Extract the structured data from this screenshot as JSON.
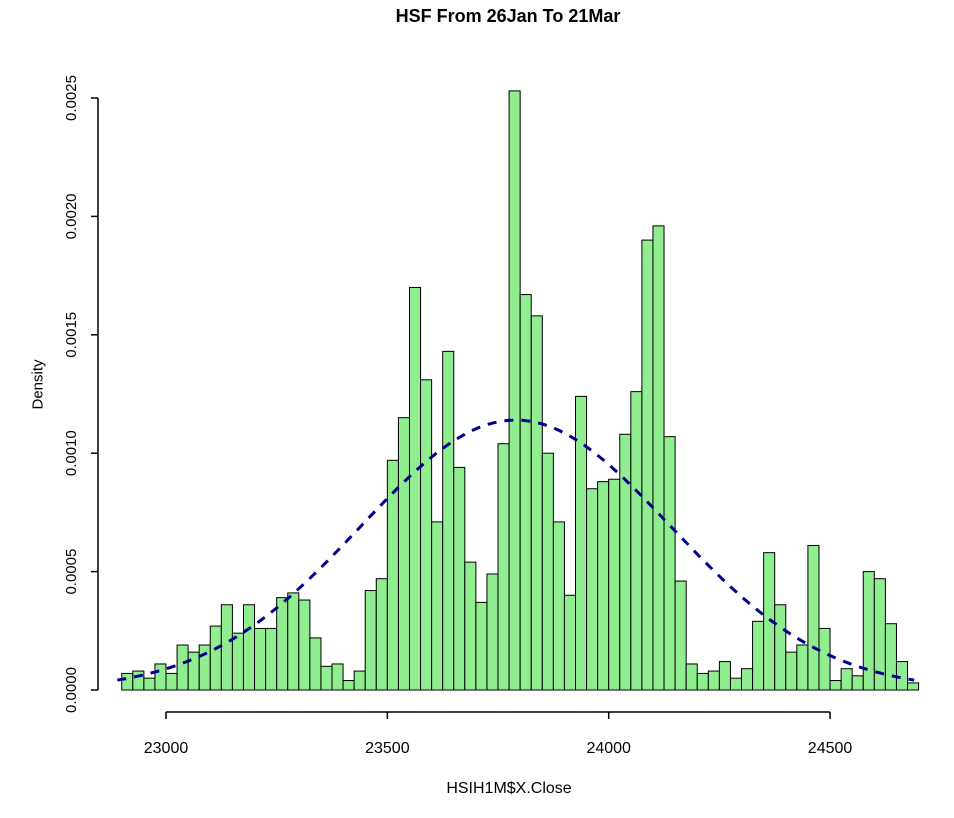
{
  "chart": {
    "title": "HSF From 26Jan To 21Mar",
    "xlabel": "HSIH1M$X.Close",
    "ylabel": "Density"
  },
  "chart_data": {
    "type": "bar",
    "subtype": "histogram-with-normal-density-overlay",
    "title": "HSF From 26Jan To 21Mar",
    "xlabel": "HSIH1M$X.Close",
    "ylabel": "Density",
    "bin_start": 22900,
    "bin_width": 25,
    "densities": [
      7e-05,
      8e-05,
      5e-05,
      0.00011,
      7e-05,
      0.00019,
      0.00016,
      0.00019,
      0.00027,
      0.00036,
      0.00024,
      0.00036,
      0.00026,
      0.00026,
      0.00039,
      0.00041,
      0.00038,
      0.00022,
      0.0001,
      0.00011,
      4e-05,
      8e-05,
      0.00042,
      0.00047,
      0.00097,
      0.00115,
      0.0017,
      0.00131,
      0.00071,
      0.00143,
      0.00094,
      0.00054,
      0.00037,
      0.00049,
      0.00104,
      0.00253,
      0.00167,
      0.00158,
      0.001,
      0.00071,
      0.0004,
      0.00124,
      0.00085,
      0.00088,
      0.00089,
      0.00108,
      0.00126,
      0.0019,
      0.00196,
      0.00107,
      0.00046,
      0.00011,
      7e-05,
      8e-05,
      0.00012,
      5e-05,
      9e-05,
      0.00029,
      0.00058,
      0.00036,
      0.00016,
      0.00019,
      0.00061,
      0.00026,
      4e-05,
      9e-05,
      6e-05,
      0.0005,
      0.00047,
      0.00028,
      0.00012,
      3e-05
    ],
    "x_tick_labels": [
      "23000",
      "23500",
      "24000",
      "24500"
    ],
    "x_tick_values": [
      23000,
      23500,
      24000,
      24500
    ],
    "y_tick_labels": [
      "0.0000",
      "0.0005",
      "0.0010",
      "0.0015",
      "0.0020",
      "0.0025"
    ],
    "y_tick_values": [
      0,
      0.0005,
      0.001,
      0.0015,
      0.002,
      0.0025
    ],
    "xlim": [
      22890,
      24700
    ],
    "ylim": [
      0,
      0.0025
    ],
    "grid": false,
    "legend": null,
    "bar_fill": "#90EE90",
    "bar_border": "#000000",
    "axis_color": "#000000",
    "curve": {
      "shape": "normal",
      "mean": 23790,
      "sd": 350,
      "peak_density": 0.00114,
      "color": "#00008B",
      "style": "dashed",
      "line_width": 3
    }
  }
}
